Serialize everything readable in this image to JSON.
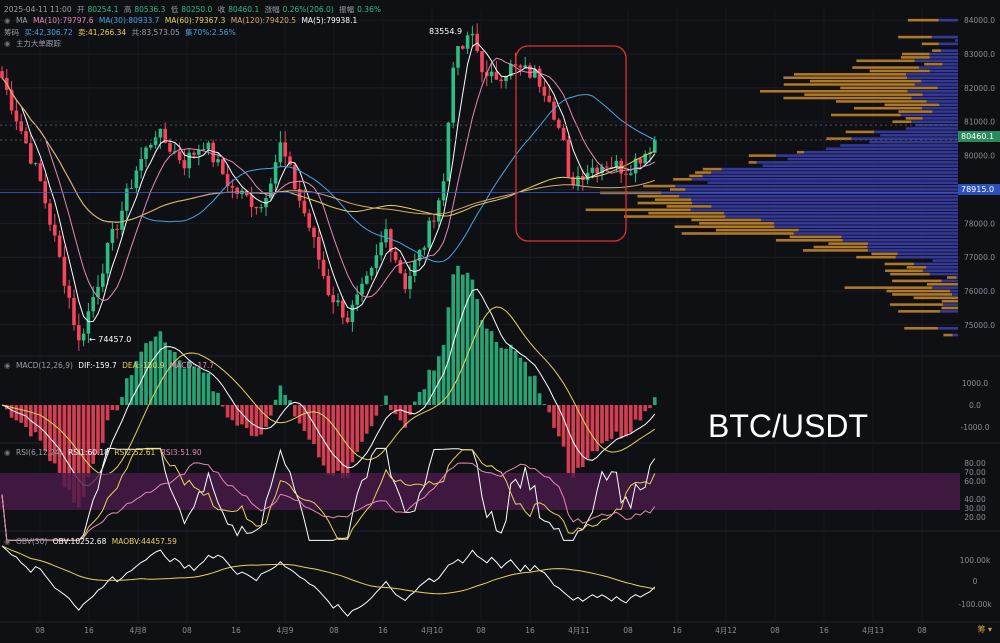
{
  "header": {
    "ohlc": {
      "date": "2025-04-11 11:00",
      "open_label": "开",
      "open": "80254.1",
      "high_label": "高",
      "high": "80536.3",
      "low_label": "低",
      "low": "80250.0",
      "close_label": "收",
      "close": "80460.1",
      "chg_label": "涨幅",
      "chg": "0.26%(206.0)",
      "amp_label": "振幅",
      "amp": "0.36%"
    },
    "ma": {
      "label": "MA",
      "ma10": "MA(10):79797.6",
      "ma30": "MA(30):80933.7",
      "ma60": "MA(60):79367.3",
      "ma120": "MA(120):79420.5",
      "ma5": "MA(5):79938.1"
    },
    "chip": {
      "label": "筹码",
      "buy": "买:42,306.72",
      "sell": "卖:41,266.34",
      "total": "共:83,573.05",
      "concentration": "集70%:2.56%"
    },
    "big_order": "主力大单跟踪"
  },
  "indicators": {
    "macd": {
      "label": "MACD(12,26,9)",
      "dif": "DIF:-159.7",
      "dea": "DEA:-150.9",
      "macd": "MACD:-17.7"
    },
    "rsi": {
      "label": "RSI(6,12,24)",
      "rsi1": "RSI1:60.18",
      "rsi2": "RSI2:52.61",
      "rsi3": "RSI3:51.90"
    },
    "obv": {
      "label": "OBV(30)",
      "obv": "OBV:10252.68",
      "maobv": "MAOBV:44457.59"
    }
  },
  "overlay_title": "BTC/USDT",
  "price_tags": {
    "last": "80460.1",
    "line": "78915.0"
  },
  "annotations": {
    "high": "83554.9",
    "low": "← 74457.0"
  },
  "corner_badge": "筹 ▾",
  "colors": {
    "up": "#2ebd85",
    "down": "#f6465d",
    "ma5": "#ffffff",
    "ma10": "#e28ab5",
    "ma30": "#4aa3df",
    "ma60": "#e8d25a",
    "ma120": "#d6a96b",
    "highlight_box": "#e03030",
    "profile_buy": "#c98b2a",
    "profile_sell": "#3b3fb0"
  },
  "chart_data": [
    {
      "type": "candlestick",
      "title": "BTC/USDT",
      "yaxis": {
        "ticks": [
          84000,
          83000,
          82000,
          81000,
          80000,
          79000,
          78000,
          77000,
          76000,
          75000
        ],
        "ylim": [
          74200,
          84300
        ]
      },
      "xaxis": {
        "ticks": [
          "08",
          "16",
          "4月8",
          "08",
          "16",
          "4月9",
          "08",
          "16",
          "4月10",
          "08",
          "16",
          "4月11",
          "08",
          "16",
          "4月12",
          "08",
          "16",
          "4月13",
          "08"
        ]
      },
      "key_points": [
        {
          "t": 0,
          "close": 82300
        },
        {
          "t": 8,
          "close": 79200
        },
        {
          "t": 14,
          "close": 75800
        },
        {
          "t": 16,
          "close": 74457
        },
        {
          "t": 22,
          "close": 77200
        },
        {
          "t": 28,
          "close": 79600
        },
        {
          "t": 32,
          "close": 80700
        },
        {
          "t": 38,
          "close": 79800
        },
        {
          "t": 42,
          "close": 80400
        },
        {
          "t": 48,
          "close": 79000
        },
        {
          "t": 54,
          "close": 78500
        },
        {
          "t": 58,
          "close": 80300
        },
        {
          "t": 64,
          "close": 77900
        },
        {
          "t": 68,
          "close": 76000
        },
        {
          "t": 72,
          "close": 75200
        },
        {
          "t": 77,
          "close": 76500
        },
        {
          "t": 80,
          "close": 77800
        },
        {
          "t": 84,
          "close": 76200
        },
        {
          "t": 88,
          "close": 77400
        },
        {
          "t": 92,
          "close": 79200
        },
        {
          "t": 94,
          "close": 82800
        },
        {
          "t": 98,
          "close": 83554.9
        },
        {
          "t": 101,
          "close": 82200
        },
        {
          "t": 106,
          "close": 82600
        },
        {
          "t": 111,
          "close": 82400
        },
        {
          "t": 114,
          "close": 81800
        },
        {
          "t": 117,
          "close": 80300
        },
        {
          "t": 118,
          "close": 79200
        },
        {
          "t": 122,
          "close": 79600
        },
        {
          "t": 126,
          "close": 79800
        },
        {
          "t": 130,
          "close": 79600
        },
        {
          "t": 134,
          "close": 80100
        },
        {
          "t": 136,
          "close": 80460
        }
      ],
      "volume_profile": {
        "note": "horizontal volume-by-price bars; buy (orange) and sell (blue)",
        "peak_price": 78915
      }
    },
    {
      "type": "macd",
      "series": [
        {
          "name": "DIF",
          "last": -159.7
        },
        {
          "name": "DEA",
          "last": -150.9
        },
        {
          "name": "MACD",
          "last": -17.7
        }
      ],
      "yaxis": {
        "ticks": [
          "1000.0",
          "0.0",
          "-1000.0"
        ]
      }
    },
    {
      "type": "rsi",
      "series": [
        {
          "name": "RSI1",
          "last": 60.18
        },
        {
          "name": "RSI2",
          "last": 52.61
        },
        {
          "name": "RSI3",
          "last": 51.9
        }
      ],
      "yaxis": {
        "ticks": [
          "80.00",
          "70.00",
          "60.00",
          "40.00",
          "30.00",
          "20.00"
        ]
      }
    },
    {
      "type": "obv",
      "series": [
        {
          "name": "OBV",
          "last": 10252.68
        },
        {
          "name": "MAOBV",
          "last": 44457.59
        }
      ],
      "yaxis": {
        "ticks": [
          "100.00k",
          "0",
          "-100.00k"
        ]
      }
    }
  ]
}
